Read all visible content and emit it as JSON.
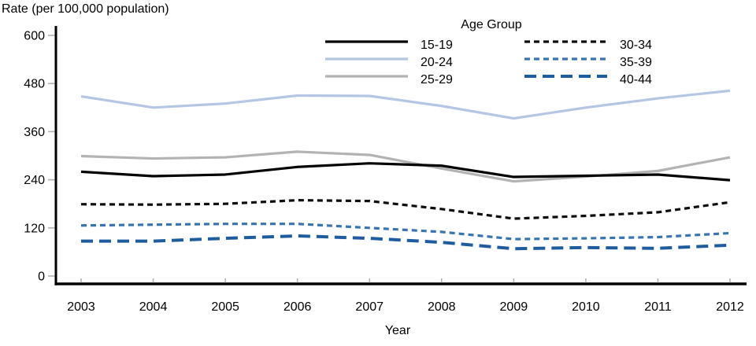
{
  "chart_data": {
    "type": "line",
    "title": "",
    "ylabel": "Rate (per 100,000 population)",
    "xlabel": "Year",
    "legend_title": "Age Group",
    "legend_position": "top-center, two columns",
    "grid": false,
    "ylim": [
      0,
      600
    ],
    "yticks": [
      0,
      120,
      240,
      360,
      480,
      600
    ],
    "x": [
      "2003",
      "2004",
      "2005",
      "2006",
      "2007",
      "2008",
      "2009",
      "2010",
      "2011",
      "2012"
    ],
    "series": [
      {
        "name": "15-19",
        "style": "solid",
        "color": "#000000",
        "width": 3.2,
        "dash": "",
        "values": [
          260,
          249,
          253,
          272,
          281,
          275,
          247,
          250,
          253,
          239
        ]
      },
      {
        "name": "20-24",
        "style": "solid",
        "color": "#b4c6e4",
        "width": 3.2,
        "dash": "",
        "values": [
          448,
          420,
          430,
          450,
          449,
          424,
          393,
          420,
          443,
          462
        ]
      },
      {
        "name": "25-29",
        "style": "solid",
        "color": "#b3b3b6",
        "width": 3.2,
        "dash": "",
        "values": [
          299,
          293,
          296,
          310,
          302,
          268,
          236,
          248,
          262,
          296
        ]
      },
      {
        "name": "30-34",
        "style": "short-dash",
        "color": "#0d0d0d",
        "width": 3.2,
        "dash": "7 5",
        "values": [
          179,
          178,
          180,
          189,
          187,
          167,
          143,
          150,
          159,
          184
        ]
      },
      {
        "name": "35-39",
        "style": "short-dash",
        "color": "#3674b2",
        "width": 3.2,
        "dash": "7 5",
        "values": [
          126,
          128,
          130,
          130,
          120,
          110,
          92,
          94,
          97,
          107
        ]
      },
      {
        "name": "40-44",
        "style": "long-dash",
        "color": "#1d5d9f",
        "width": 4,
        "dash": "15 8",
        "values": [
          87,
          87,
          94,
          100,
          94,
          84,
          68,
          71,
          69,
          77
        ]
      }
    ],
    "axis_color": "#000000",
    "tick_mark_color": "#b3b3b3"
  }
}
